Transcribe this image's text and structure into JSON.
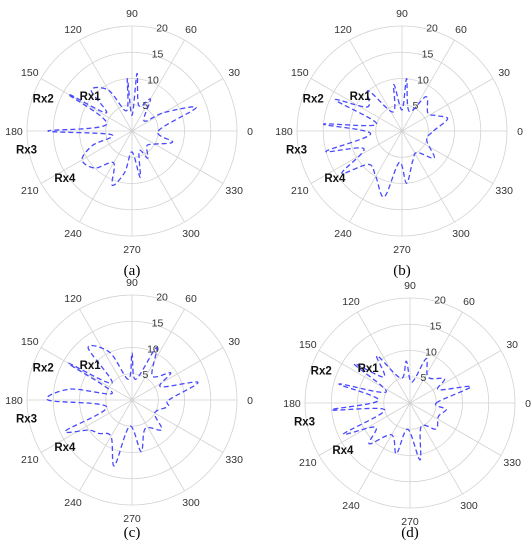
{
  "figure": {
    "caption_labels": [
      "(a)",
      "(b)",
      "(c)",
      "(d)"
    ]
  },
  "chart_data": [
    {
      "type": "polar",
      "panel": "(a)",
      "angle_ticks_deg": [
        0,
        30,
        60,
        90,
        120,
        150,
        180,
        210,
        240,
        270,
        300,
        330
      ],
      "radial_ticks": [
        5,
        10,
        15,
        20
      ],
      "rlim": [
        0,
        20
      ],
      "grid": true,
      "line_style": "dashed",
      "color": "#4a4aff",
      "annotations": [
        "Rx1",
        "Rx2",
        "Rx3",
        "Rx4"
      ],
      "series": [
        {
          "theta_deg": [
            0,
            20,
            30,
            40,
            60,
            75,
            85,
            90,
            95,
            105,
            120,
            135,
            145,
            150,
            165,
            180,
            190,
            200,
            210,
            225,
            240,
            250,
            260,
            270,
            280,
            290,
            300,
            315,
            330,
            345
          ],
          "r": [
            5,
            13,
            7,
            3,
            7,
            5,
            11,
            3,
            10,
            4,
            9,
            11,
            6,
            14,
            5,
            16,
            4,
            8,
            11,
            10,
            7,
            11,
            8,
            4,
            9,
            4,
            6,
            4,
            5,
            8
          ]
        }
      ]
    },
    {
      "type": "polar",
      "panel": "(b)",
      "angle_ticks_deg": [
        0,
        30,
        60,
        90,
        120,
        150,
        180,
        210,
        240,
        270,
        300,
        330
      ],
      "radial_ticks": [
        5,
        10,
        15,
        20
      ],
      "rlim": [
        0,
        20
      ],
      "grid": true,
      "line_style": "dashed",
      "color": "#4a4aff",
      "annotations": [
        "Rx1",
        "Rx2",
        "Rx3",
        "Rx4"
      ],
      "series": [
        {
          "theta_deg": [
            0,
            15,
            25,
            35,
            55,
            70,
            85,
            90,
            100,
            115,
            130,
            145,
            155,
            165,
            175,
            185,
            195,
            205,
            215,
            225,
            240,
            255,
            265,
            275,
            290,
            305,
            320,
            340
          ],
          "r": [
            6,
            9,
            7,
            6,
            8,
            4,
            10,
            4,
            9,
            4,
            10,
            8,
            14,
            5,
            15,
            6,
            15,
            8,
            14,
            9,
            10,
            13,
            6,
            10,
            6,
            5,
            8,
            5
          ]
        }
      ]
    },
    {
      "type": "polar",
      "panel": "(c)",
      "angle_ticks_deg": [
        0,
        30,
        60,
        90,
        120,
        150,
        180,
        210,
        240,
        270,
        300,
        330
      ],
      "radial_ticks": [
        5,
        10,
        15,
        20
      ],
      "rlim": [
        0,
        20
      ],
      "grid": true,
      "line_style": "dashed",
      "color": "#4a4aff",
      "annotations": [
        "Rx1",
        "Rx2",
        "Rx3",
        "Rx4"
      ],
      "series": [
        {
          "theta_deg": [
            0,
            15,
            25,
            35,
            50,
            65,
            80,
            90,
            100,
            115,
            130,
            140,
            150,
            160,
            170,
            180,
            195,
            205,
            215,
            225,
            240,
            255,
            265,
            280,
            295,
            315,
            330,
            350
          ],
          "r": [
            7,
            13,
            6,
            9,
            6,
            11,
            4,
            9,
            4,
            10,
            13,
            5,
            14,
            4,
            12,
            16,
            5,
            14,
            10,
            9,
            8,
            13,
            5,
            10,
            6,
            8,
            5,
            7
          ]
        }
      ]
    },
    {
      "type": "polar",
      "panel": "(d)",
      "angle_ticks_deg": [
        0,
        30,
        60,
        90,
        120,
        150,
        180,
        210,
        240,
        270,
        300,
        330
      ],
      "radial_ticks": [
        5,
        10,
        15,
        20
      ],
      "rlim": [
        0,
        20
      ],
      "grid": true,
      "line_style": "dashed",
      "color": "#4a4aff",
      "annotations": [
        "Rx1",
        "Rx2",
        "Rx3",
        "Rx4"
      ],
      "series": [
        {
          "theta_deg": [
            0,
            15,
            25,
            35,
            55,
            70,
            85,
            95,
            110,
            125,
            135,
            145,
            155,
            165,
            175,
            185,
            195,
            205,
            215,
            225,
            240,
            255,
            265,
            280,
            295,
            315,
            335,
            350
          ],
          "r": [
            5,
            12,
            6,
            8,
            6,
            9,
            4,
            8,
            5,
            11,
            7,
            13,
            5,
            14,
            6,
            15,
            5,
            14,
            8,
            11,
            7,
            10,
            5,
            11,
            5,
            7,
            6,
            7
          ]
        }
      ]
    }
  ]
}
